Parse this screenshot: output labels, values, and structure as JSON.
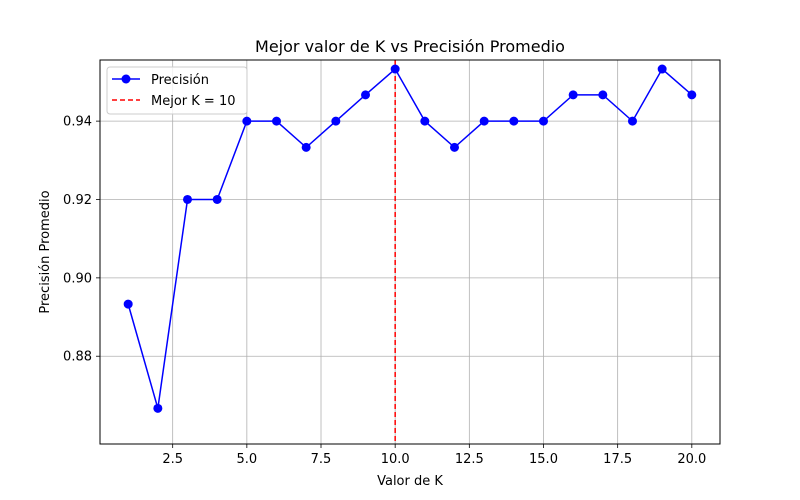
{
  "chart_data": {
    "type": "line",
    "title": "Mejor valor de K vs Precisión Promedio",
    "xlabel": "Valor de K",
    "ylabel": "Precisión Promedio",
    "xlim": [
      0.05,
      20.95
    ],
    "ylim": [
      0.8576,
      0.9556
    ],
    "xticks": [
      2.5,
      5.0,
      7.5,
      10.0,
      12.5,
      15.0,
      17.5,
      20.0
    ],
    "xtick_labels": [
      "2.5",
      "5.0",
      "7.5",
      "10.0",
      "12.5",
      "15.0",
      "17.5",
      "20.0"
    ],
    "yticks": [
      0.88,
      0.9,
      0.92,
      0.94
    ],
    "ytick_labels": [
      "0.88",
      "0.90",
      "0.92",
      "0.94"
    ],
    "grid": true,
    "legend_position": "top-left",
    "series": [
      {
        "name": "Precisión",
        "color": "#0000ff",
        "marker": "circle",
        "x": [
          1,
          2,
          3,
          4,
          5,
          6,
          7,
          8,
          9,
          10,
          11,
          12,
          13,
          14,
          15,
          16,
          17,
          18,
          19,
          20
        ],
        "y": [
          0.8933,
          0.8667,
          0.92,
          0.92,
          0.94,
          0.94,
          0.9333,
          0.94,
          0.9467,
          0.9533,
          0.94,
          0.9333,
          0.94,
          0.94,
          0.94,
          0.9467,
          0.9467,
          0.94,
          0.9533,
          0.9467
        ]
      }
    ],
    "vlines": [
      {
        "name": "Mejor K = 10",
        "x": 10,
        "color": "#ff0000",
        "style": "dashed"
      }
    ]
  }
}
